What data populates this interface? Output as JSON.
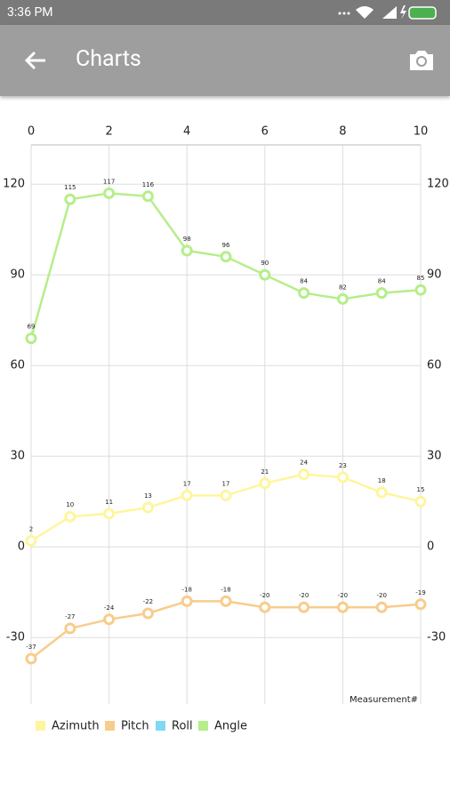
{
  "status_bar": {
    "time": "3:36 PM"
  },
  "app_bar": {
    "title": "Charts"
  },
  "chart_data": {
    "type": "line",
    "x": [
      0,
      1,
      2,
      3,
      4,
      5,
      6,
      7,
      8,
      9,
      10
    ],
    "xlim": [
      0,
      10
    ],
    "xticks": [
      0,
      2,
      4,
      6,
      8,
      10
    ],
    "ylim": [
      -52,
      133
    ],
    "yticks": [
      -30,
      0,
      30,
      60,
      90,
      120
    ],
    "x_label": "Measurement#",
    "grid": true,
    "series": [
      {
        "name": "Azimuth",
        "color": "#fff59d",
        "values": [
          2,
          10,
          11,
          13,
          17,
          17,
          21,
          24,
          23,
          18,
          15
        ]
      },
      {
        "name": "Pitch",
        "color": "#f8cc8c",
        "values": [
          -37,
          -27,
          -24,
          -22,
          -18,
          -18,
          -20,
          -20,
          -20,
          -20,
          -19
        ]
      },
      {
        "name": "Roll",
        "color": "#81d8f5",
        "values": [
          null,
          null,
          null,
          null,
          null,
          null,
          null,
          null,
          null,
          null,
          null
        ]
      },
      {
        "name": "Angle",
        "color": "#b5ee8a",
        "values": [
          69,
          115,
          117,
          116,
          98,
          96,
          90,
          84,
          82,
          84,
          85
        ]
      }
    ]
  }
}
